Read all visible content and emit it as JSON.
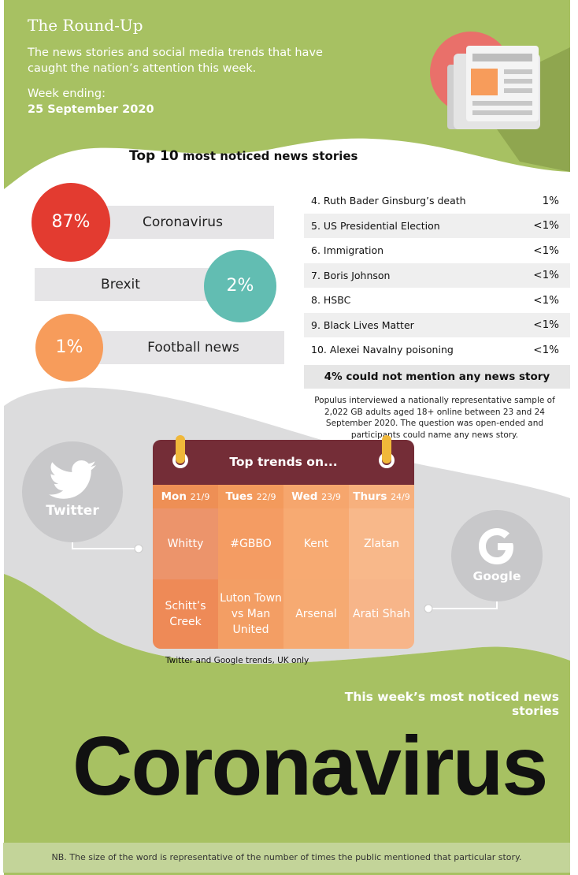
{
  "header": {
    "title": "The Round-Up",
    "intro": "The news stories and social media trends that have caught the nation’s attention this week.",
    "week_label": "Week ending:",
    "week_date": "25 September 2020"
  },
  "colors": {
    "green": "#a7c162",
    "red": "#e33b30",
    "teal": "#62bdb2",
    "orange": "#f79c5b",
    "maroon": "#742d37",
    "gray": "#e6e5e7"
  },
  "top10": {
    "title_prefix": "Top 10",
    "title_rest": "most noticed news stories",
    "featured": [
      {
        "pct": "87%",
        "label": "Coronavirus"
      },
      {
        "pct": "2%",
        "label": "Brexit"
      },
      {
        "pct": "1%",
        "label": "Football news"
      }
    ],
    "rows": [
      {
        "label": "4. Ruth Bader Ginsburg’s death",
        "pct": "1%"
      },
      {
        "label": "5. US Presidential Election",
        "pct": "<1%"
      },
      {
        "label": "6. Immigration",
        "pct": "<1%"
      },
      {
        "label": "7. Boris Johnson",
        "pct": "<1%"
      },
      {
        "label": "8. HSBC",
        "pct": "<1%"
      },
      {
        "label": "9. Black Lives Matter",
        "pct": "<1%"
      },
      {
        "label": "10. Alexei Navalny poisoning",
        "pct": "<1%"
      }
    ],
    "no_mention": "4% could not mention any news story",
    "method": "Populus interviewed a nationally representative sample of 2,022 GB adults aged 18+ online between 23 and 24 September 2020. The question was open-ended and participants could name any news story."
  },
  "trends": {
    "title": "Top trends on...",
    "days": [
      {
        "day": "Mon",
        "date": "21/9",
        "twitter": "Whitty",
        "google": "Schitt’s Creek"
      },
      {
        "day": "Tues",
        "date": "22/9",
        "twitter": "#GBBO",
        "google": "Luton Town vs Man United"
      },
      {
        "day": "Wed",
        "date": "23/9",
        "twitter": "Kent",
        "google": "Arsenal"
      },
      {
        "day": "Thurs",
        "date": "24/9",
        "twitter": "Zlatan",
        "google": "Arati Shah"
      }
    ],
    "twitter_label": "Twitter",
    "google_label": "Google",
    "note": "Twitter and Google trends, UK only"
  },
  "noticed": {
    "title": "This week’s most noticed news stories",
    "word": "Coronavirus"
  },
  "footnote": "NB. The size of the word is representative of the number of times the public mentioned that particular story."
}
